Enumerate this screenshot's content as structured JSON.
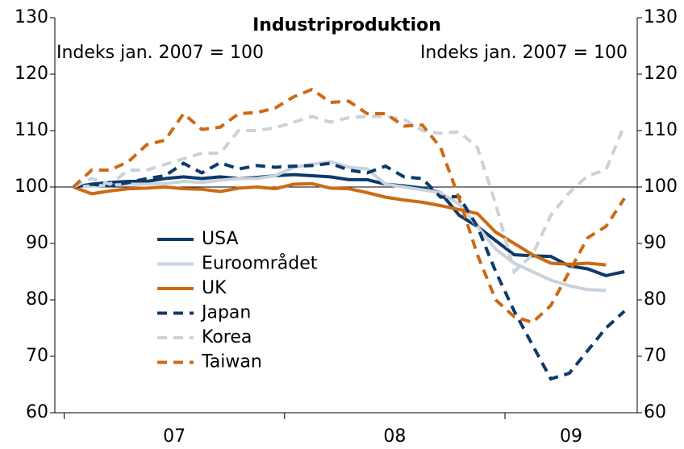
{
  "chart_data": {
    "type": "line",
    "title": "Industriproduktion",
    "subtitle_left": "Indeks jan. 2007 = 100",
    "subtitle_right": "Indeks jan. 2007 = 100",
    "x": [
      7.042,
      7.125,
      7.208,
      7.292,
      7.375,
      7.458,
      7.542,
      7.625,
      7.708,
      7.792,
      7.875,
      7.958,
      8.042,
      8.125,
      8.208,
      8.292,
      8.375,
      8.458,
      8.542,
      8.625,
      8.708,
      8.792,
      8.875,
      8.958,
      9.042,
      9.125,
      9.208,
      9.292,
      9.375,
      9.458,
      9.542
    ],
    "xlim": [
      6.958,
      9.6
    ],
    "xticks": [
      7,
      8,
      9
    ],
    "xtick_labels": [
      {
        "value": 7.5,
        "label": "07"
      },
      {
        "value": 8.5,
        "label": "08"
      },
      {
        "value": 9.3,
        "label": "09"
      }
    ],
    "ylim": [
      60,
      130
    ],
    "yticks": [
      60,
      70,
      80,
      90,
      100,
      110,
      120,
      130
    ],
    "reference_line": 100,
    "series": [
      {
        "name": "USA",
        "color": "#0d3a6b",
        "dashed": false,
        "values": [
          100,
          100.5,
          100.8,
          101,
          101,
          101.5,
          101.8,
          101.5,
          101.8,
          101.5,
          101.7,
          102,
          102.2,
          102,
          101.8,
          101.3,
          101.3,
          100.5,
          100.2,
          99.8,
          99,
          95,
          93,
          90.5,
          88,
          87.8,
          87.7,
          86,
          85.5,
          84.3,
          85
        ]
      },
      {
        "name": "Euroområdet",
        "color": "#c9d3dc",
        "dashed": false,
        "values": [
          100,
          100.2,
          100.3,
          100.5,
          100.5,
          100.6,
          101,
          100.8,
          101.2,
          101.5,
          101.5,
          102,
          103.5,
          104,
          104.5,
          103.5,
          103.2,
          100.5,
          100,
          99.5,
          99,
          97,
          93,
          89,
          86.5,
          85,
          83.5,
          82.5,
          81.8,
          81.7,
          null
        ]
      },
      {
        "name": "UK",
        "color": "#cc6a14",
        "dashed": false,
        "values": [
          100,
          98.8,
          99.3,
          99.7,
          99.8,
          100,
          99.7,
          99.6,
          99.2,
          99.8,
          100,
          99.7,
          100.5,
          100.6,
          99.8,
          99.7,
          99,
          98.2,
          97.7,
          97.3,
          96.7,
          96,
          95.3,
          92,
          90,
          88,
          86.5,
          86.3,
          86.5,
          86.2,
          null
        ]
      },
      {
        "name": "Japan",
        "color": "#0d3a6b",
        "dashed": true,
        "values": [
          100,
          100.5,
          100.2,
          100.8,
          101.5,
          102,
          104.2,
          102.5,
          104.3,
          103.2,
          103.8,
          103.5,
          103.7,
          103.8,
          104.2,
          103,
          102.5,
          103.7,
          101.8,
          101.5,
          98.2,
          98.3,
          93,
          85,
          78,
          72,
          66,
          67,
          71,
          75,
          78
        ]
      },
      {
        "name": "Korea",
        "color": "#c9d3dc",
        "dashed": true,
        "values": [
          100,
          101.5,
          100.5,
          103,
          103,
          104,
          105,
          106,
          106,
          110,
          110,
          110.5,
          111.5,
          112.5,
          111.5,
          112.3,
          112.5,
          112.5,
          112,
          110,
          109.5,
          109.8,
          107,
          97,
          85,
          88,
          95,
          99,
          102,
          103,
          111
        ]
      },
      {
        "name": "Taiwan",
        "color": "#cc6a14",
        "dashed": true,
        "values": [
          100,
          103,
          103,
          104.5,
          107.5,
          108.3,
          113,
          110.2,
          110.6,
          113,
          113.2,
          114,
          116,
          117.3,
          115,
          115.2,
          113,
          113,
          110.8,
          111,
          107,
          98,
          88,
          80,
          77,
          76,
          79,
          85,
          91,
          93,
          98
        ]
      }
    ]
  }
}
